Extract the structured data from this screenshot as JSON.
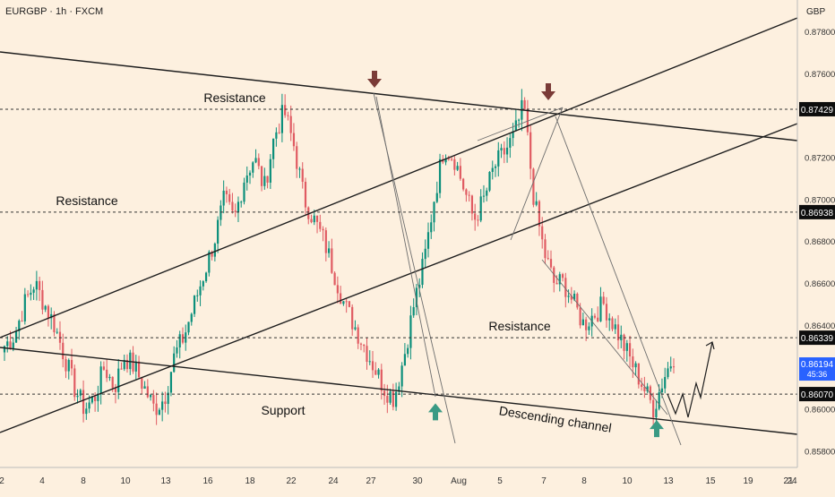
{
  "header": {
    "symbol_line": "EURGBP · 1h · FXCM",
    "currency": "GBP"
  },
  "colors": {
    "background": "#fdf0df",
    "up_candle": "#0b8f7b",
    "down_candle": "#e05b62",
    "line": "#1e1e1e",
    "thin_line": "#6e6e6e",
    "arrow_down": "#7a3b37",
    "arrow_up": "#3a9a84",
    "label_bg": "#0d0d0d",
    "price_bg": "#2962ff"
  },
  "chart_data": {
    "type": "candlestick",
    "x_ticks": [
      "2",
      "4",
      "8",
      "10",
      "13",
      "16",
      "18",
      "22",
      "24",
      "27",
      "30",
      "Aug",
      "5",
      "7",
      "8",
      "10",
      "13",
      "15",
      "19",
      "21",
      "24"
    ],
    "y_ticks": [
      "0.87800",
      "0.87600",
      "0.87200",
      "0.87000",
      "0.86800",
      "0.86600",
      "0.86400",
      "0.86000",
      "0.85800"
    ],
    "ylim": [
      0.8572,
      0.8795
    ],
    "levels": [
      {
        "price": "0.87429",
        "value": 0.87429,
        "style": "dashed"
      },
      {
        "price": "0.86938",
        "value": 0.86938,
        "style": "dashed"
      },
      {
        "price": "0.86339",
        "value": 0.86339,
        "style": "dashed"
      },
      {
        "price": "0.86070",
        "value": 0.8607,
        "style": "dashed"
      }
    ],
    "current_price": {
      "value": 0.86194,
      "label": "0.86194",
      "countdown": "45:36"
    },
    "annotations": [
      {
        "text": "Resistance",
        "kind": "label"
      },
      {
        "text": "Resistance",
        "kind": "label"
      },
      {
        "text": "Resistance",
        "kind": "label"
      },
      {
        "text": "Support",
        "kind": "label"
      },
      {
        "text": "Descending channel",
        "kind": "label"
      }
    ],
    "arrows": [
      {
        "direction": "down",
        "at_value": 0.8751
      },
      {
        "direction": "down",
        "at_value": 0.8745
      },
      {
        "direction": "up",
        "at_value": 0.8606
      },
      {
        "direction": "up",
        "at_value": 0.8598
      }
    ],
    "path_waypoints": [
      0.863,
      0.8635,
      0.865,
      0.866,
      0.865,
      0.864,
      0.8625,
      0.861,
      0.86,
      0.8605,
      0.862,
      0.861,
      0.8625,
      0.862,
      0.861,
      0.86,
      0.8605,
      0.8625,
      0.8635,
      0.865,
      0.8665,
      0.868,
      0.87,
      0.869,
      0.871,
      0.872,
      0.8705,
      0.873,
      0.8742,
      0.8725,
      0.87,
      0.869,
      0.868,
      0.8665,
      0.865,
      0.864,
      0.863,
      0.862,
      0.861,
      0.8605,
      0.8625,
      0.865,
      0.867,
      0.87,
      0.8725,
      0.872,
      0.8705,
      0.869,
      0.87,
      0.8715,
      0.8722,
      0.873,
      0.8745,
      0.87,
      0.8675,
      0.866,
      0.866,
      0.865,
      0.864,
      0.8645,
      0.865,
      0.864,
      0.863,
      0.862,
      0.861,
      0.86,
      0.8615,
      0.8625
    ]
  }
}
